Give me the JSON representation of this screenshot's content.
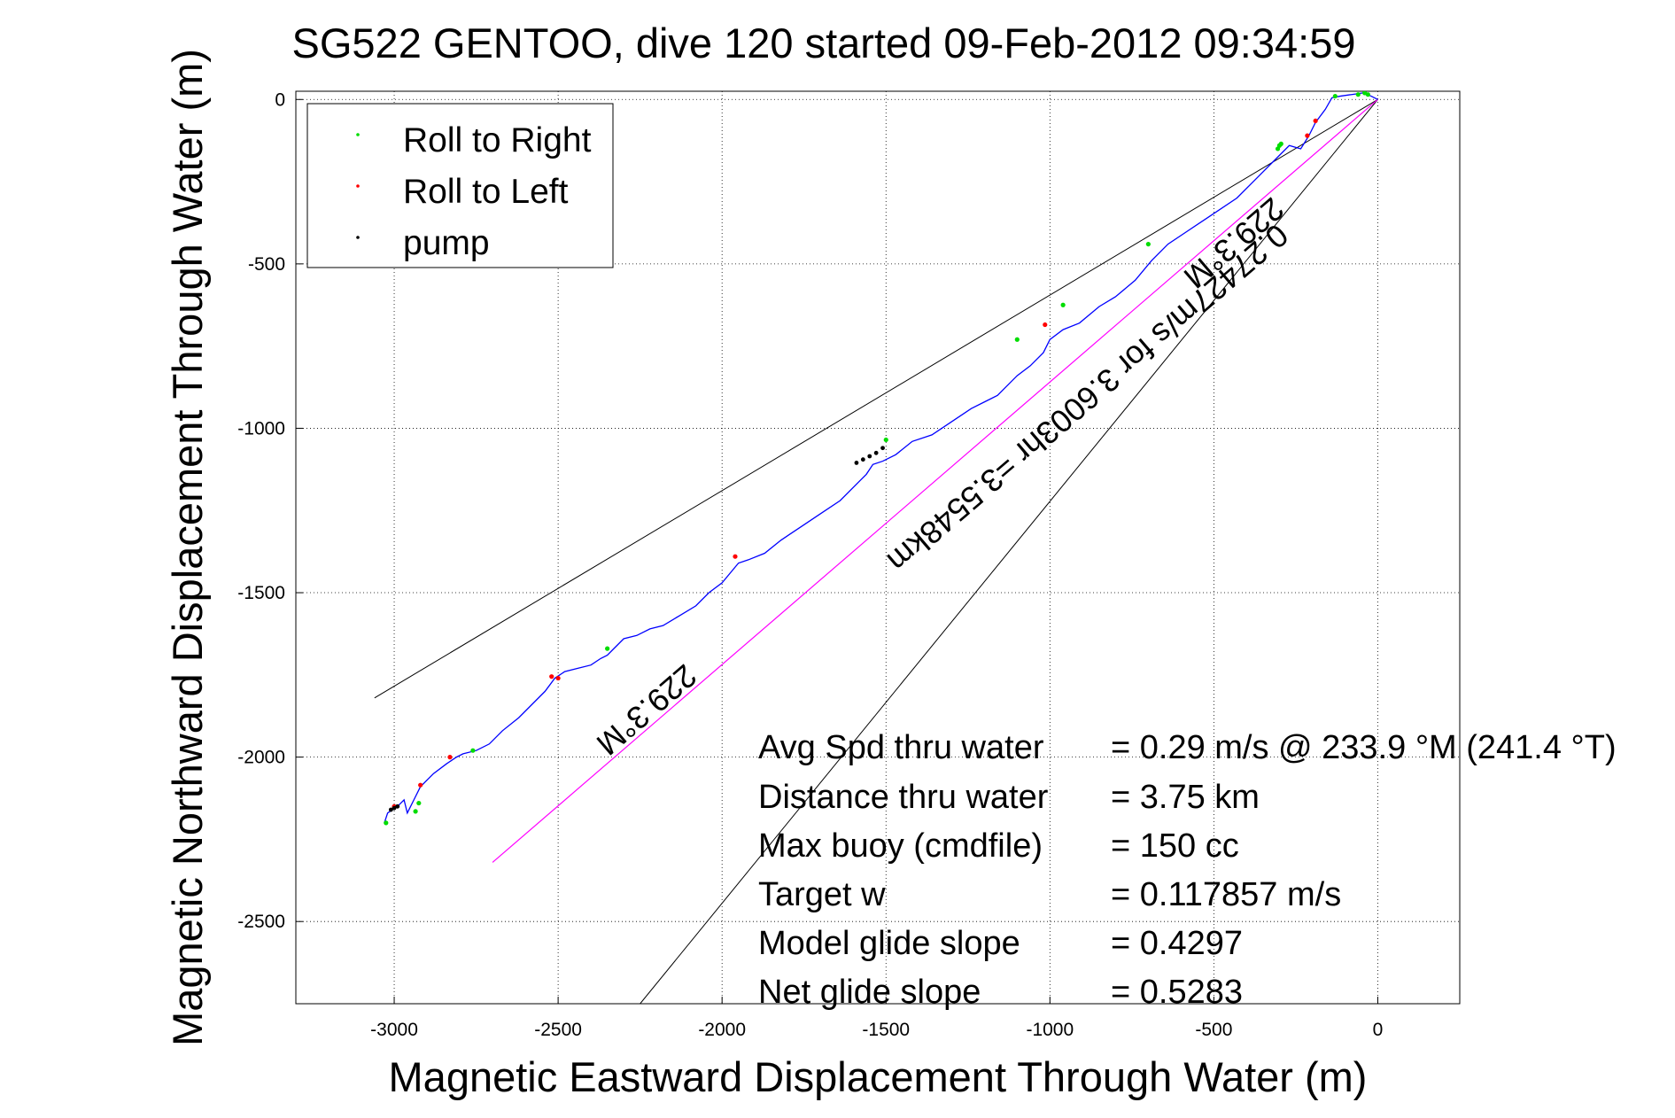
{
  "chart_data": {
    "type": "scatter",
    "title": "SG522 GENTOO, dive 120 started 09-Feb-2012 09:34:59",
    "xlabel": "Magnetic Eastward Displacement Through Water (m)",
    "ylabel": "Magnetic Northward Displacement Through Water (m)",
    "xlim": [
      -3300,
      250
    ],
    "ylim": [
      -2750,
      25
    ],
    "xticks": [
      -3000,
      -2500,
      -2000,
      -1500,
      -1000,
      -500,
      0
    ],
    "yticks": [
      0,
      -500,
      -1000,
      -1500,
      -2000,
      -2500
    ],
    "xtick_labels": [
      "-3000",
      "-2500",
      "-2000",
      "-1500",
      "-1000",
      "-500",
      "0"
    ],
    "ytick_labels": [
      "0",
      "-500",
      "-1000",
      "-1500",
      "-2000",
      "-2500"
    ],
    "grid": true,
    "legend": {
      "placement": "top-left",
      "entries": [
        {
          "label": "Roll to Right",
          "color": "#00dd00"
        },
        {
          "label": "Roll to Left",
          "color": "#ff0000"
        },
        {
          "label": "pump",
          "color": "#000000"
        }
      ]
    },
    "colors": {
      "track": "#0000ff",
      "course": "#ff00ff",
      "envelope": "#000000"
    },
    "track": {
      "name": "glider track",
      "x": [
        0,
        -20,
        -45,
        -80,
        -115,
        -140,
        -160,
        -190,
        -210,
        -235,
        -270,
        -300,
        -360,
        -430,
        -520,
        -580,
        -640,
        -690,
        -740,
        -800,
        -850,
        -910,
        -960,
        -1000,
        -1020,
        -1060,
        -1100,
        -1160,
        -1200,
        -1240,
        -1300,
        -1360,
        -1420,
        -1470,
        -1510,
        -1540,
        -1560,
        -1580,
        -1640,
        -1700,
        -1760,
        -1820,
        -1870,
        -1920,
        -1950,
        -2000,
        -2040,
        -2080,
        -2130,
        -2180,
        -2220,
        -2260,
        -2300,
        -2330,
        -2350,
        -2370,
        -2400,
        -2440,
        -2480,
        -2510,
        -2540,
        -2580,
        -2620,
        -2670,
        -2710,
        -2750,
        -2790,
        -2810,
        -2840,
        -2880,
        -2920,
        -2940,
        -2960,
        -2970,
        -2990,
        -3005,
        -3020,
        -3030
      ],
      "y": [
        0,
        10,
        20,
        15,
        10,
        5,
        -30,
        -70,
        -110,
        -150,
        -140,
        -170,
        -230,
        -300,
        -360,
        -400,
        -440,
        -490,
        -550,
        -600,
        -630,
        -680,
        -700,
        -730,
        -770,
        -810,
        -840,
        -900,
        -920,
        -940,
        -980,
        -1020,
        -1040,
        -1080,
        -1100,
        -1110,
        -1140,
        -1160,
        -1220,
        -1260,
        -1300,
        -1340,
        -1380,
        -1400,
        -1410,
        -1470,
        -1500,
        -1540,
        -1570,
        -1600,
        -1610,
        -1630,
        -1640,
        -1670,
        -1690,
        -1700,
        -1720,
        -1730,
        -1740,
        -1760,
        -1800,
        -1840,
        -1880,
        -1920,
        -1960,
        -1980,
        -1990,
        -2000,
        -2020,
        -2050,
        -2090,
        -2130,
        -2170,
        -2130,
        -2150,
        -2160,
        -2170,
        -2200
      ]
    },
    "roll_right": {
      "x": [
        -30,
        -40,
        -60,
        -130,
        -295,
        -300,
        -305,
        -700,
        -960,
        -1100,
        -1500,
        -2350,
        -2760,
        -2925,
        -2935,
        -3025
      ],
      "y": [
        15,
        20,
        15,
        10,
        -135,
        -140,
        -150,
        -440,
        -625,
        -730,
        -1035,
        -1670,
        -1980,
        -2140,
        -2165,
        -2200
      ]
    },
    "roll_left": {
      "x": [
        -190,
        -215,
        -1015,
        -1960,
        -2520,
        -2500,
        -2830,
        -2920,
        -3000
      ],
      "y": [
        -65,
        -110,
        -685,
        -1390,
        -1755,
        -1760,
        -2000,
        -2085,
        -2150
      ]
    },
    "pump": {
      "x": [
        -1510,
        -1530,
        -1550,
        -1570,
        -1590,
        -2990,
        -3000,
        -3010
      ],
      "y": [
        -1060,
        -1075,
        -1085,
        -1095,
        -1105,
        -2150,
        -2155,
        -2160
      ]
    },
    "course_line": {
      "x": [
        0,
        -2700
      ],
      "y": [
        0,
        -2320
      ]
    },
    "envelope_lines": [
      {
        "x": [
          0,
          -3060
        ],
        "y": [
          0,
          -1820
        ]
      },
      {
        "x": [
          0,
          -2250
        ],
        "y": [
          0,
          -2750
        ]
      }
    ],
    "course_labels": [
      "0.27427m/s for 3.6003hr =3.5548km",
      "229.3°M",
      "229.3°M"
    ],
    "stats": [
      {
        "label": "Avg Spd thru water",
        "value": "=  0.29 m/s @ 233.9 °M (241.4 °T)"
      },
      {
        "label": "Distance thru water",
        "value": "=  3.75 km"
      },
      {
        "label": "Max buoy (cmdfile)",
        "value": "= 150 cc"
      },
      {
        "label": "Target w",
        "value": "= 0.117857 m/s"
      },
      {
        "label": "Model glide slope",
        "value": "= 0.4297"
      },
      {
        "label": "Net glide slope",
        "value": "= 0.5283"
      }
    ]
  }
}
